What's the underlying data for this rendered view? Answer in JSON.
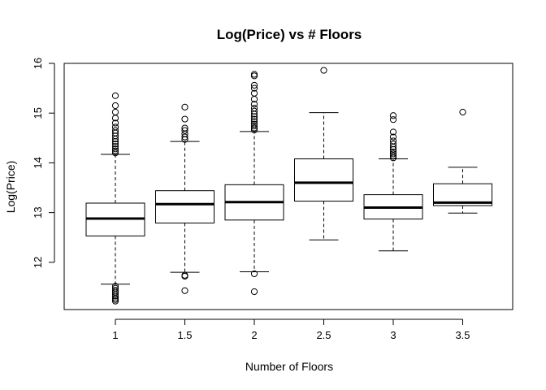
{
  "chart_data": {
    "type": "boxplot",
    "title": "Log(Price) vs # Floors",
    "xlabel": "Number of Floors",
    "ylabel": "Log(Price)",
    "ylim": [
      11.05,
      16.0
    ],
    "yticks": [
      12,
      13,
      14,
      15,
      16
    ],
    "categories": [
      "1",
      "1.5",
      "2",
      "2.5",
      "3",
      "3.5"
    ],
    "boxes": [
      {
        "category": "1",
        "whisker_low": 11.56,
        "q1": 12.53,
        "median": 12.88,
        "q3": 13.19,
        "whisker_high": 14.17,
        "outliers": [
          11.22,
          11.25,
          11.28,
          11.32,
          11.36,
          11.4,
          11.44,
          11.48,
          11.52,
          14.2,
          14.24,
          14.28,
          14.33,
          14.38,
          14.43,
          14.48,
          14.54,
          14.6,
          14.65,
          14.72,
          14.8,
          14.9,
          15.02,
          15.15,
          15.35
        ]
      },
      {
        "category": "1.5",
        "whisker_low": 11.8,
        "q1": 12.79,
        "median": 13.17,
        "q3": 13.44,
        "whisker_high": 14.43,
        "outliers": [
          11.43,
          11.72,
          11.74,
          14.47,
          14.52,
          14.58,
          14.65,
          14.7,
          14.88,
          15.12
        ]
      },
      {
        "category": "2",
        "whisker_low": 11.81,
        "q1": 12.85,
        "median": 13.21,
        "q3": 13.56,
        "whisker_high": 14.63,
        "outliers": [
          11.41,
          11.77,
          14.66,
          14.7,
          14.74,
          14.78,
          14.83,
          14.88,
          14.93,
          14.98,
          15.04,
          15.1,
          15.18,
          15.28,
          15.4,
          15.5,
          15.56,
          15.75,
          15.78
        ]
      },
      {
        "category": "2.5",
        "whisker_low": 12.45,
        "q1": 13.23,
        "median": 13.6,
        "q3": 14.08,
        "whisker_high": 15.01,
        "outliers": [
          15.86
        ]
      },
      {
        "category": "3",
        "whisker_low": 12.23,
        "q1": 12.87,
        "median": 13.1,
        "q3": 13.36,
        "whisker_high": 14.08,
        "outliers": [
          14.1,
          14.14,
          14.18,
          14.22,
          14.27,
          14.32,
          14.38,
          14.44,
          14.52,
          14.62,
          14.87,
          14.95
        ]
      },
      {
        "category": "3.5",
        "whisker_low": 12.99,
        "q1": 13.14,
        "median": 13.2,
        "q3": 13.58,
        "whisker_high": 13.91,
        "outliers": [
          15.02
        ]
      }
    ]
  }
}
